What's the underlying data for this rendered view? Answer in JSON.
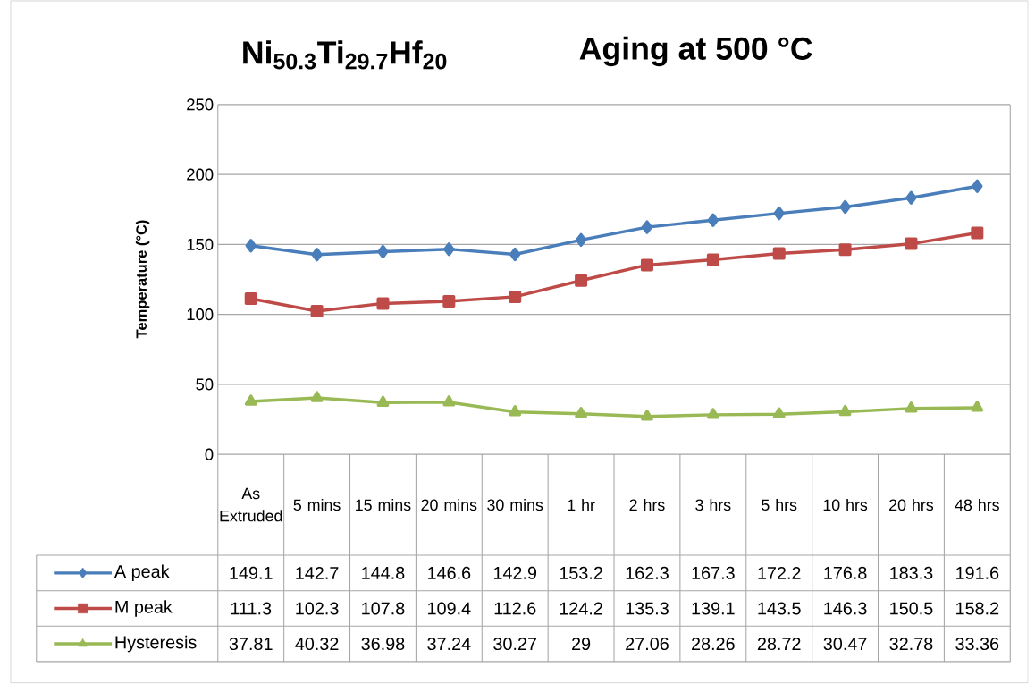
{
  "chart_data": {
    "type": "line",
    "title": "Ni$_{50.3}$Ti$_{29.7}$Hf$_{20}$",
    "subtitle": "Aging at 500 °C",
    "ylabel": "Temperature (°C)",
    "categories": [
      "As Extruded",
      "5 mins",
      "15 mins",
      "20 mins",
      "30 mins",
      "1 hr",
      "2 hrs",
      "3 hrs",
      "5 hrs",
      "10 hrs",
      "20 hrs",
      "48 hrs"
    ],
    "series": [
      {
        "name": "A peak",
        "color": "#4a7ebb",
        "marker": "diamond",
        "values": [
          149.1,
          142.7,
          144.8,
          146.6,
          142.9,
          153.2,
          162.3,
          167.3,
          172.2,
          176.8,
          183.3,
          191.6
        ]
      },
      {
        "name": "M peak",
        "color": "#be4b48",
        "marker": "square",
        "values": [
          111.3,
          102.3,
          107.8,
          109.4,
          112.6,
          124.2,
          135.3,
          139.1,
          143.5,
          146.3,
          150.5,
          158.2
        ]
      },
      {
        "name": "Hysteresis",
        "color": "#98b954",
        "marker": "triangle",
        "values": [
          37.81,
          40.32,
          36.98,
          37.24,
          30.27,
          29,
          27.06,
          28.26,
          28.72,
          30.47,
          32.78,
          33.36
        ]
      }
    ],
    "ylim": [
      0,
      250
    ],
    "yticks": [
      0,
      50,
      100,
      150,
      200,
      250
    ],
    "grid": "y",
    "legend": "bottom",
    "data_labels": true
  }
}
